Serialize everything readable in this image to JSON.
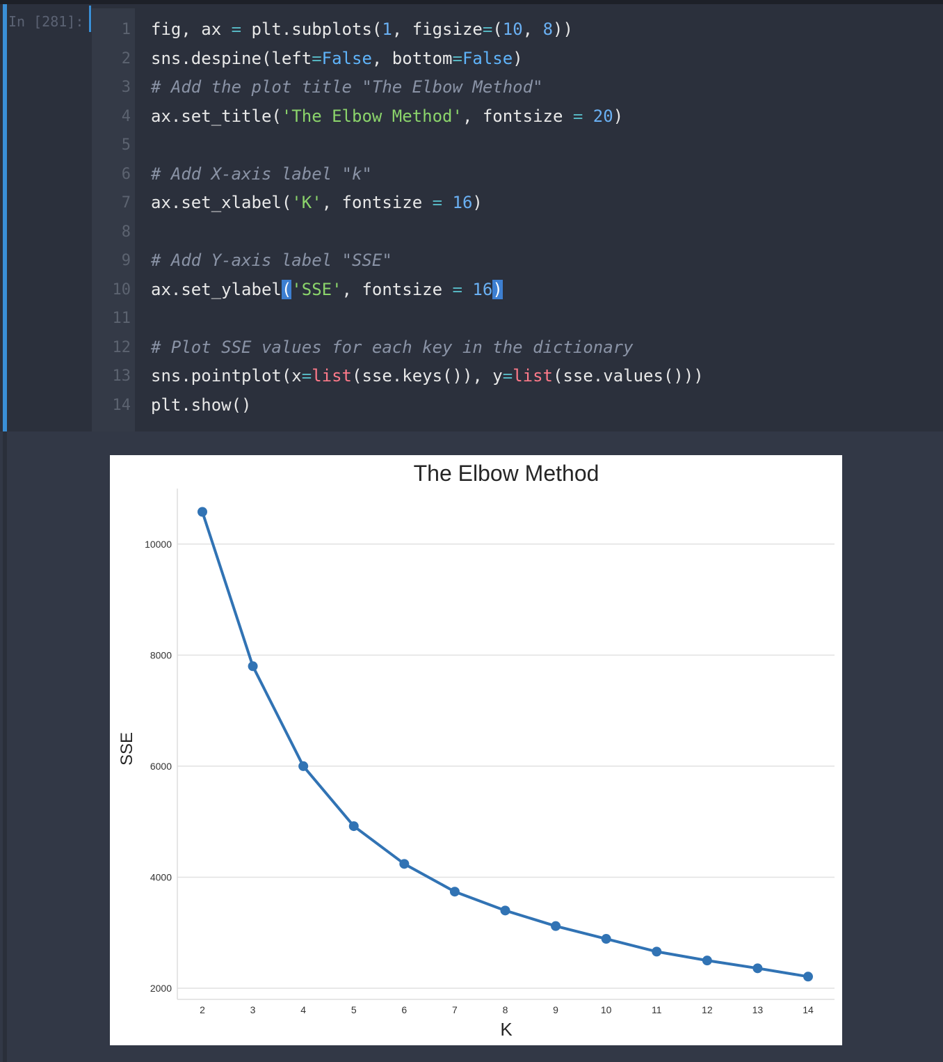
{
  "cell": {
    "prompt": "In [281]:",
    "lines": [
      {
        "n": "1",
        "code": "fig, ax = plt.subplots(1, figsize=(10, 8))"
      },
      {
        "n": "2",
        "code": "sns.despine(left=False, bottom=False)"
      },
      {
        "n": "3",
        "code": "# Add the plot title \"The Elbow Method\""
      },
      {
        "n": "4",
        "code": "ax.set_title('The Elbow Method', fontsize = 20)"
      },
      {
        "n": "5",
        "code": ""
      },
      {
        "n": "6",
        "code": "# Add X-axis label \"k\""
      },
      {
        "n": "7",
        "code": "ax.set_xlabel('K', fontsize = 16)"
      },
      {
        "n": "8",
        "code": ""
      },
      {
        "n": "9",
        "code": "# Add Y-axis label \"SSE\""
      },
      {
        "n": "10",
        "code": "ax.set_ylabel('SSE', fontsize = 16)"
      },
      {
        "n": "11",
        "code": ""
      },
      {
        "n": "12",
        "code": "# Plot SSE values for each key in the dictionary"
      },
      {
        "n": "13",
        "code": "sns.pointplot(x=list(sse.keys()), y=list(sse.values()))"
      },
      {
        "n": "14",
        "code": "plt.show()"
      }
    ]
  },
  "colors": {
    "series": "#3173b4",
    "grid": "#e1e1e1",
    "accent": "#3a8fd6"
  },
  "chart_data": {
    "type": "line",
    "title": "The Elbow Method",
    "xlabel": "K",
    "ylabel": "SSE",
    "categories": [
      "2",
      "3",
      "4",
      "5",
      "6",
      "7",
      "8",
      "9",
      "10",
      "11",
      "12",
      "13",
      "14"
    ],
    "values": [
      10580,
      7800,
      6000,
      4920,
      4240,
      3740,
      3400,
      3120,
      2890,
      2660,
      2500,
      2360,
      2210
    ],
    "yticks": [
      2000,
      4000,
      6000,
      8000,
      10000
    ],
    "ytick_labels": [
      "2000",
      "4000",
      "6000",
      "8000",
      "10000"
    ],
    "ylim": [
      1800,
      11000
    ],
    "grid": true
  }
}
